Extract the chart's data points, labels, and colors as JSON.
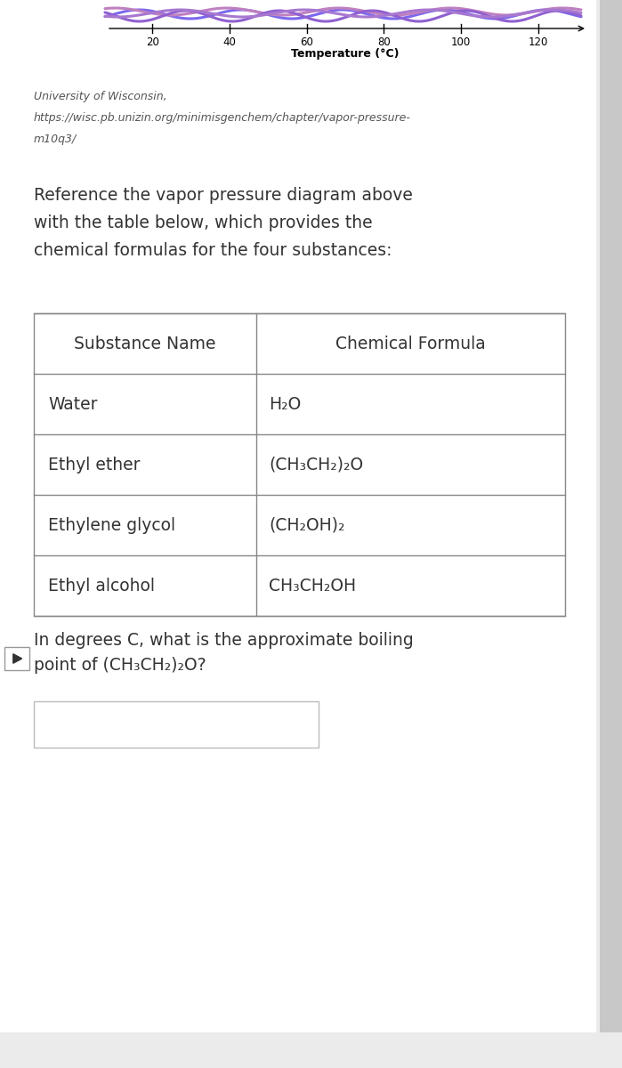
{
  "background_color": "#ebebeb",
  "page_bg": "#ffffff",
  "axis_x_ticks": [
    20,
    40,
    60,
    80,
    100,
    120
  ],
  "axis_xlabel": "Temperature (°C)",
  "axis_xlabel_fontsize": 9,
  "axis_tick_fontsize": 8.5,
  "source_line1": "University of Wisconsin,",
  "source_line2": "https://wisc.pb.unizin.org/minimisgenchem/chapter/vapor-pressure-",
  "source_line3": "m10q3/",
  "source_fontsize": 9,
  "ref_text": "Reference the vapor pressure diagram above\nwith the table below, which provides the\nchemical formulas for the four substances:",
  "ref_fontsize": 13.5,
  "table_headers": [
    "Substance Name",
    "Chemical Formula"
  ],
  "table_rows": [
    [
      "Water",
      "H₂O"
    ],
    [
      "Ethyl ether",
      "(CH₃CH₂)₂O"
    ],
    [
      "Ethylene glycol",
      "(CH₂OH)₂"
    ],
    [
      "Ethyl alcohol",
      "CH₃CH₂OH"
    ]
  ],
  "table_fontsize": 13.5,
  "question_text": "In degrees C, what is the approximate boiling\npoint of (CH₃CH₂)₂O?",
  "question_fontsize": 13.5,
  "answer_box_color": "#ffffff",
  "answer_box_border": "#bbbbbb",
  "sidebar_color": "#c8c8c8",
  "curve_colors": [
    "#7b68ee",
    "#b07ab0",
    "#9060c0",
    "#8878c8"
  ],
  "text_color": "#333333",
  "citation_color": "#555555"
}
